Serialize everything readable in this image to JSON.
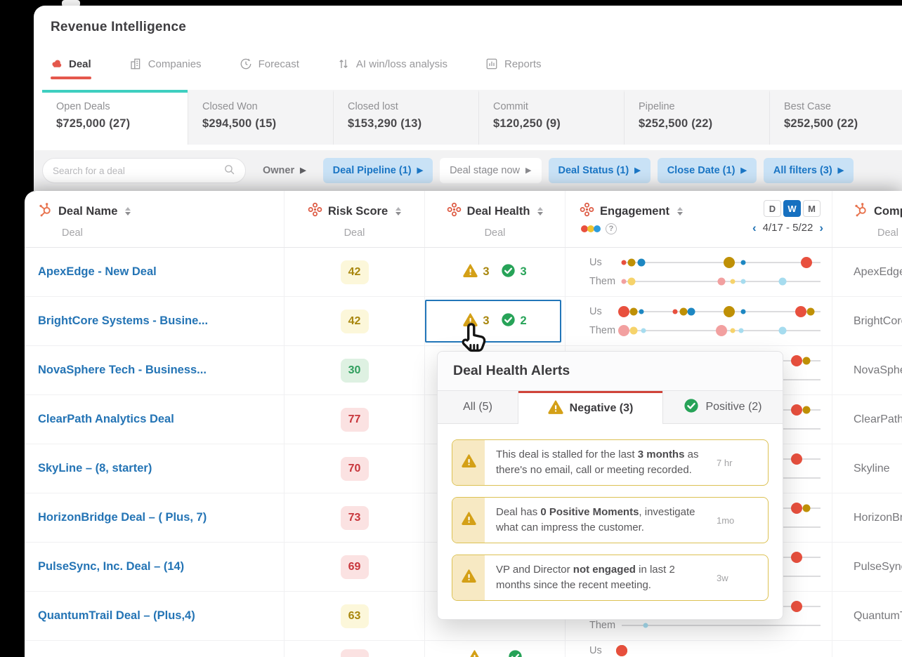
{
  "app": {
    "title": "Revenue Intelligence"
  },
  "nav": {
    "tabs": [
      {
        "label": "Deal",
        "active": true
      },
      {
        "label": "Companies",
        "active": false
      },
      {
        "label": "Forecast",
        "active": false
      },
      {
        "label": "AI win/loss analysis",
        "active": false
      },
      {
        "label": "Reports",
        "active": false
      }
    ]
  },
  "summary_cards": [
    {
      "label": "Open Deals",
      "value": "$725,000 (27)",
      "active": true
    },
    {
      "label": "Closed Won",
      "value": "$294,500 (15)",
      "active": false
    },
    {
      "label": "Closed lost",
      "value": "$153,290 (13)",
      "active": false
    },
    {
      "label": "Commit",
      "value": "$120,250 (9)",
      "active": false
    },
    {
      "label": "Pipeline",
      "value": "$252,500 (22)",
      "active": false
    },
    {
      "label": "Best Case",
      "value": "$252,500 (22)",
      "active": false
    }
  ],
  "filters": {
    "search_placeholder": "Search for a deal",
    "chips": [
      {
        "label": "Owner",
        "active": false
      },
      {
        "label": "Deal Pipeline (1)",
        "active": true
      },
      {
        "label": "Deal stage now",
        "active": false
      },
      {
        "label": "Deal Status (1)",
        "active": true
      },
      {
        "label": "Close Date (1)",
        "active": true
      },
      {
        "label": "All filters (3)",
        "active": true
      }
    ]
  },
  "table": {
    "columns": {
      "deal_name": {
        "label": "Deal Name",
        "sub": "Deal"
      },
      "risk_score": {
        "label": "Risk Score",
        "sub": "Deal"
      },
      "deal_health": {
        "label": "Deal Health",
        "sub": "Deal"
      },
      "engagement": {
        "label": "Engagement"
      },
      "company": {
        "label": "Company",
        "sub": "Deal"
      }
    },
    "engagement_controls": {
      "granularity": [
        {
          "label": "D",
          "active": false
        },
        {
          "label": "W",
          "active": true
        },
        {
          "label": "M",
          "active": false
        }
      ],
      "date_range": "4/17 - 5/22"
    },
    "engagement_labels": {
      "us": "Us",
      "them": "Them"
    },
    "rows": [
      {
        "name": "ApexEdge - New Deal",
        "risk": "42",
        "risk_level": "yellow",
        "health_neg": "3",
        "health_pos": "3",
        "company": "ApexEdge",
        "eng_us": [
          {
            "p": 1,
            "s": "s",
            "c": "red"
          },
          {
            "p": 5,
            "s": "m",
            "c": "olive"
          },
          {
            "p": 10,
            "s": "m",
            "c": "blue"
          },
          {
            "p": 54,
            "s": "l",
            "c": "olive"
          },
          {
            "p": 61,
            "s": "s",
            "c": "blue"
          },
          {
            "p": 93,
            "s": "l",
            "c": "red"
          }
        ],
        "eng_them": [
          {
            "p": 1,
            "s": "s",
            "c": "pink"
          },
          {
            "p": 5,
            "s": "m",
            "c": "yellow"
          },
          {
            "p": 50,
            "s": "m",
            "c": "pink"
          },
          {
            "p": 56,
            "s": "s",
            "c": "yellow"
          },
          {
            "p": 61,
            "s": "s",
            "c": "lightblue"
          },
          {
            "p": 81,
            "s": "m",
            "c": "lightblue"
          }
        ]
      },
      {
        "name": "BrightCore Systems - Busine...",
        "risk": "42",
        "risk_level": "yellow",
        "health_neg": "3",
        "health_pos": "2",
        "company": "BrightCore",
        "selected": true,
        "eng_us": [
          {
            "p": 1,
            "s": "l",
            "c": "red"
          },
          {
            "p": 6,
            "s": "m",
            "c": "olive"
          },
          {
            "p": 10,
            "s": "s",
            "c": "blue"
          },
          {
            "p": 27,
            "s": "s",
            "c": "red"
          },
          {
            "p": 31,
            "s": "m",
            "c": "olive"
          },
          {
            "p": 35,
            "s": "m",
            "c": "blue"
          },
          {
            "p": 54,
            "s": "l",
            "c": "olive"
          },
          {
            "p": 61,
            "s": "s",
            "c": "blue"
          },
          {
            "p": 90,
            "s": "l",
            "c": "red"
          },
          {
            "p": 95,
            "s": "m",
            "c": "olive"
          }
        ],
        "eng_them": [
          {
            "p": 1,
            "s": "l",
            "c": "pink"
          },
          {
            "p": 6,
            "s": "m",
            "c": "yellow"
          },
          {
            "p": 11,
            "s": "s",
            "c": "lightblue"
          },
          {
            "p": 50,
            "s": "l",
            "c": "pink"
          },
          {
            "p": 56,
            "s": "s",
            "c": "yellow"
          },
          {
            "p": 60,
            "s": "s",
            "c": "lightblue"
          },
          {
            "p": 81,
            "s": "m",
            "c": "lightblue"
          }
        ]
      },
      {
        "name": "NovaSphere Tech - Business...",
        "risk": "30",
        "risk_level": "green",
        "company": "NovaSphere",
        "eng_us": [
          {
            "p": 88,
            "s": "l",
            "c": "red"
          },
          {
            "p": 93,
            "s": "m",
            "c": "olive"
          }
        ],
        "eng_them": []
      },
      {
        "name": "ClearPath Analytics Deal",
        "risk": "77",
        "risk_level": "red",
        "company": "ClearPath",
        "eng_us": [
          {
            "p": 88,
            "s": "l",
            "c": "red"
          },
          {
            "p": 93,
            "s": "m",
            "c": "olive"
          }
        ],
        "eng_them": []
      },
      {
        "name": "SkyLine – (8, starter)",
        "risk": "70",
        "risk_level": "red",
        "company": "Skyline",
        "eng_us": [
          {
            "p": 88,
            "s": "l",
            "c": "red"
          }
        ],
        "eng_them": []
      },
      {
        "name": "HorizonBridge Deal – ( Plus, 7)",
        "risk": "73",
        "risk_level": "red",
        "company": "HorizonBridge",
        "eng_us": [
          {
            "p": 88,
            "s": "l",
            "c": "red"
          },
          {
            "p": 93,
            "s": "m",
            "c": "olive"
          }
        ],
        "eng_them": []
      },
      {
        "name": "PulseSync, Inc. Deal – (14)",
        "risk": "69",
        "risk_level": "red",
        "company": "PulseSync",
        "eng_us": [
          {
            "p": 88,
            "s": "l",
            "c": "red"
          }
        ],
        "eng_them": []
      },
      {
        "name": "QuantumTrail Deal – (Plus,4)",
        "risk": "63",
        "risk_level": "yellow",
        "company": "QuantumTrail",
        "eng_us": [
          {
            "p": 88,
            "s": "l",
            "c": "red"
          }
        ],
        "eng_them": [
          {
            "p": 12,
            "s": "s",
            "c": "lightblue"
          }
        ]
      },
      {
        "name": "",
        "risk": "",
        "risk_level": "red",
        "health_neg": "",
        "health_pos": "",
        "company": "",
        "eng_us": [
          {
            "p": 1,
            "s": "l",
            "c": "red"
          },
          {
            "p": 5,
            "s": "m",
            "c": "olive"
          },
          {
            "p": 9,
            "s": "s",
            "c": "blue"
          },
          {
            "p": 26,
            "s": "s",
            "c": "red"
          },
          {
            "p": 31,
            "s": "m",
            "c": "blue"
          },
          {
            "p": 54,
            "s": "l",
            "c": "olive"
          },
          {
            "p": 60,
            "s": "s",
            "c": "blue"
          },
          {
            "p": 90,
            "s": "l",
            "c": "red"
          },
          {
            "p": 95,
            "s": "m",
            "c": "red"
          }
        ],
        "eng_them": []
      }
    ]
  },
  "popup": {
    "title": "Deal Health Alerts",
    "tabs": [
      {
        "label": "All (5)",
        "active": false
      },
      {
        "label": "Negative (3)",
        "active": true,
        "icon": "warning"
      },
      {
        "label": "Positive (2)",
        "active": false,
        "icon": "positive"
      }
    ],
    "alerts": [
      {
        "segments": [
          {
            "t": "This deal is stalled for the last "
          },
          {
            "t": "3 months",
            "b": true
          },
          {
            "t": " as there's no email, call or meeting recorded."
          }
        ],
        "time": "7 hr"
      },
      {
        "segments": [
          {
            "t": "Deal has "
          },
          {
            "t": "0 Positive Moments",
            "b": true
          },
          {
            "t": ", investigate what can impress the customer."
          }
        ],
        "time": "1mo"
      },
      {
        "segments": [
          {
            "t": "VP and Director "
          },
          {
            "t": "not engaged",
            "b": true
          },
          {
            "t": " in last 2 months since the recent meeting."
          }
        ],
        "time": "3w"
      }
    ]
  },
  "colors": {
    "accent_teal": "#3ecfc0",
    "brand_red": "#e4584c",
    "link_blue": "#2474b5",
    "chip_active_bg": "#c9e2f6",
    "chip_active_text": "#1b76c5",
    "warning": "#cf9d17",
    "positive": "#27a358",
    "selection": "#2276b9"
  }
}
